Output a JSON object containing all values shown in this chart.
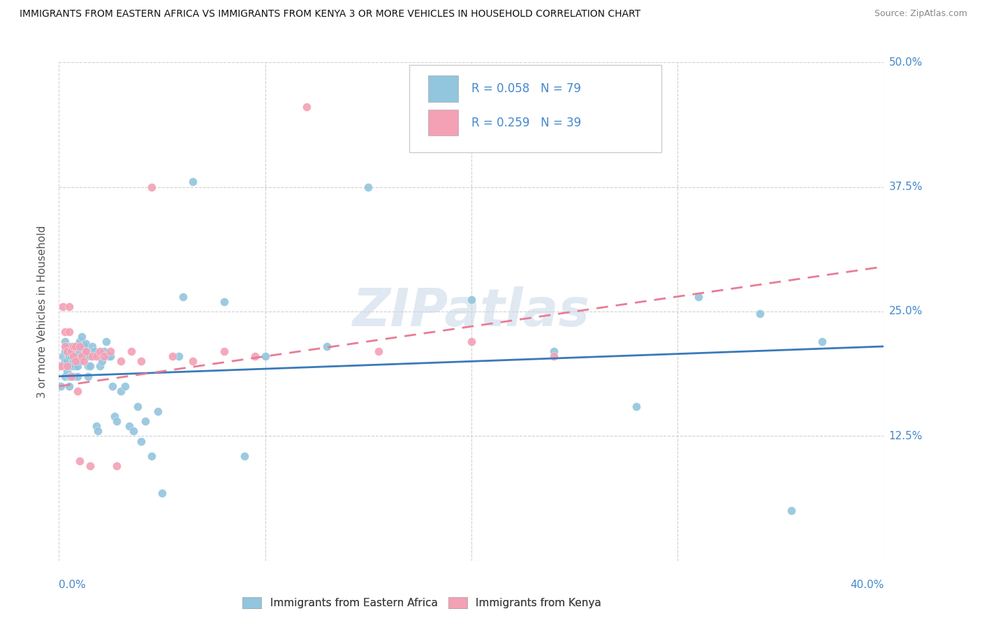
{
  "title": "IMMIGRANTS FROM EASTERN AFRICA VS IMMIGRANTS FROM KENYA 3 OR MORE VEHICLES IN HOUSEHOLD CORRELATION CHART",
  "source": "Source: ZipAtlas.com",
  "ylabel_label": "3 or more Vehicles in Household",
  "legend1_label": "Immigrants from Eastern Africa",
  "legend2_label": "Immigrants from Kenya",
  "r1": 0.058,
  "n1": 79,
  "r2": 0.259,
  "n2": 39,
  "color_blue": "#92c5de",
  "color_pink": "#f4a0b5",
  "color_line_blue": "#3a7ab8",
  "color_line_pink": "#e87d96",
  "color_text_blue": "#4488cc",
  "watermark": "ZIPatlas",
  "xlim": [
    0.0,
    0.4
  ],
  "ylim": [
    0.0,
    0.5
  ],
  "ytick_positions": [
    0.0,
    0.125,
    0.25,
    0.375,
    0.5
  ],
  "ytick_labels": [
    "",
    "12.5%",
    "25.0%",
    "37.5%",
    "50.0%"
  ],
  "xtick_positions": [
    0.0,
    0.1,
    0.2,
    0.3,
    0.4
  ],
  "blue_x": [
    0.001,
    0.002,
    0.002,
    0.003,
    0.003,
    0.003,
    0.003,
    0.004,
    0.004,
    0.004,
    0.004,
    0.005,
    0.005,
    0.005,
    0.005,
    0.006,
    0.006,
    0.006,
    0.006,
    0.007,
    0.007,
    0.007,
    0.007,
    0.008,
    0.008,
    0.008,
    0.009,
    0.009,
    0.01,
    0.01,
    0.01,
    0.011,
    0.011,
    0.012,
    0.012,
    0.013,
    0.013,
    0.014,
    0.014,
    0.015,
    0.015,
    0.016,
    0.017,
    0.018,
    0.019,
    0.02,
    0.021,
    0.022,
    0.023,
    0.024,
    0.025,
    0.026,
    0.027,
    0.028,
    0.03,
    0.032,
    0.034,
    0.036,
    0.038,
    0.04,
    0.042,
    0.045,
    0.048,
    0.05,
    0.058,
    0.06,
    0.065,
    0.08,
    0.09,
    0.1,
    0.13,
    0.15,
    0.2,
    0.24,
    0.28,
    0.31,
    0.34,
    0.355,
    0.37
  ],
  "blue_y": [
    0.175,
    0.195,
    0.205,
    0.185,
    0.2,
    0.21,
    0.22,
    0.19,
    0.2,
    0.21,
    0.215,
    0.195,
    0.205,
    0.185,
    0.175,
    0.205,
    0.195,
    0.215,
    0.185,
    0.2,
    0.21,
    0.195,
    0.185,
    0.195,
    0.215,
    0.205,
    0.185,
    0.195,
    0.22,
    0.21,
    0.2,
    0.225,
    0.215,
    0.215,
    0.205,
    0.218,
    0.21,
    0.195,
    0.185,
    0.205,
    0.195,
    0.215,
    0.21,
    0.135,
    0.13,
    0.195,
    0.2,
    0.21,
    0.22,
    0.205,
    0.205,
    0.175,
    0.145,
    0.14,
    0.17,
    0.175,
    0.135,
    0.13,
    0.155,
    0.12,
    0.14,
    0.105,
    0.15,
    0.068,
    0.205,
    0.265,
    0.38,
    0.26,
    0.105,
    0.205,
    0.215,
    0.375,
    0.262,
    0.21,
    0.155,
    0.265,
    0.248,
    0.05,
    0.22
  ],
  "pink_x": [
    0.001,
    0.002,
    0.003,
    0.003,
    0.004,
    0.004,
    0.005,
    0.005,
    0.006,
    0.006,
    0.007,
    0.007,
    0.008,
    0.008,
    0.009,
    0.01,
    0.011,
    0.012,
    0.013,
    0.015,
    0.016,
    0.018,
    0.02,
    0.022,
    0.025,
    0.028,
    0.03,
    0.035,
    0.04,
    0.045,
    0.055,
    0.065,
    0.08,
    0.095,
    0.12,
    0.155,
    0.2,
    0.24,
    0.01
  ],
  "pink_y": [
    0.195,
    0.255,
    0.23,
    0.215,
    0.21,
    0.195,
    0.255,
    0.23,
    0.185,
    0.21,
    0.215,
    0.205,
    0.215,
    0.2,
    0.17,
    0.215,
    0.205,
    0.2,
    0.21,
    0.095,
    0.205,
    0.205,
    0.21,
    0.205,
    0.21,
    0.095,
    0.2,
    0.21,
    0.2,
    0.375,
    0.205,
    0.2,
    0.21,
    0.205,
    0.455,
    0.21,
    0.22,
    0.205,
    0.1
  ],
  "blue_line_x": [
    0.0,
    0.4
  ],
  "blue_line_y": [
    0.185,
    0.215
  ],
  "pink_line_x": [
    0.0,
    0.4
  ],
  "pink_line_y": [
    0.175,
    0.295
  ]
}
